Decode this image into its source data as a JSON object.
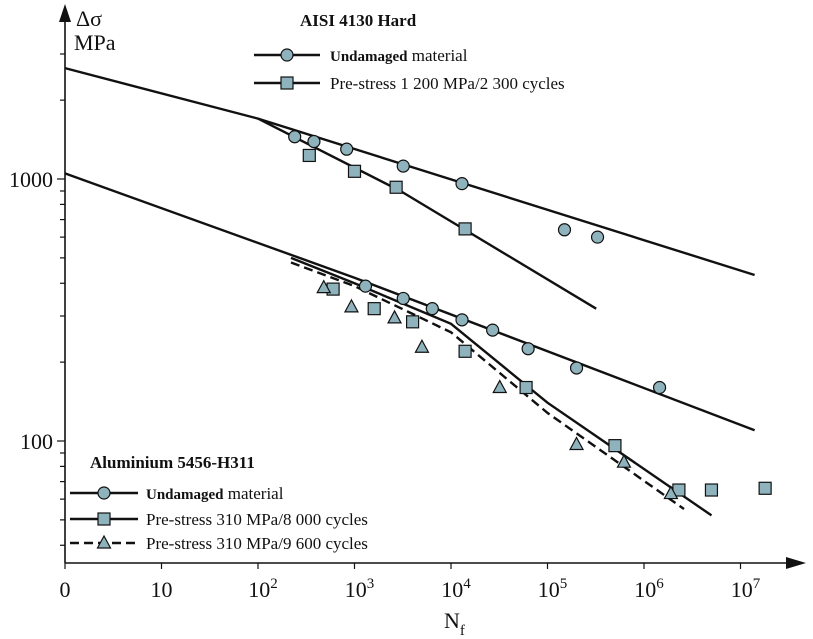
{
  "chart_data": {
    "type": "scatter",
    "x_scale": "log",
    "y_scale": "log",
    "xlabel": "N",
    "xlabel_sub": "f",
    "ylabel_line1": "Δσ",
    "ylabel_line2": "MPa",
    "x_ticks": [
      {
        "value": 1,
        "label": "0"
      },
      {
        "value": 10,
        "label": "10"
      },
      {
        "value": 100,
        "label": "10",
        "sup": "2"
      },
      {
        "value": 1000,
        "label": "10",
        "sup": "3"
      },
      {
        "value": 10000,
        "label": "10",
        "sup": "4"
      },
      {
        "value": 100000,
        "label": "10",
        "sup": "5"
      },
      {
        "value": 1000000,
        "label": "10",
        "sup": "6"
      },
      {
        "value": 10000000,
        "label": "10",
        "sup": "7"
      }
    ],
    "y_ticks": [
      {
        "value": 100,
        "label": "100"
      },
      {
        "value": 1000,
        "label": "1000"
      }
    ],
    "groups": [
      {
        "title": "AISI 4130 Hard",
        "legend": [
          {
            "key": "a_und",
            "bold": "Undamaged",
            "text": " material",
            "marker": "circle",
            "dash": false
          },
          {
            "key": "a_pre",
            "bold": "",
            "text": "Pre-stress 1 200 MPa/2 300 cycles",
            "marker": "square",
            "dash": false
          }
        ]
      },
      {
        "title": "Aluminium 5456-H311",
        "legend": [
          {
            "key": "b_und",
            "bold": "Undamaged",
            "text": " material",
            "marker": "circle",
            "dash": false
          },
          {
            "key": "b_pre1",
            "bold": "",
            "text": "Pre-stress 310 MPa/8 000 cycles",
            "marker": "square",
            "dash": false
          },
          {
            "key": "b_pre2",
            "bold": "",
            "text": "Pre-stress 310 MPa/9 600 cycles",
            "marker": "triangle",
            "dash": true
          }
        ]
      }
    ],
    "series": [
      {
        "key": "a_und",
        "marker": "circle",
        "points": [
          [
            240,
            1450
          ],
          [
            380,
            1390
          ],
          [
            830,
            1300
          ],
          [
            3200,
            1120
          ],
          [
            13000,
            960
          ],
          [
            150000,
            640
          ],
          [
            330000,
            600
          ]
        ],
        "line": [
          [
            1,
            2650
          ],
          [
            100,
            1700
          ],
          [
            14000000,
            430
          ]
        ],
        "dash": false
      },
      {
        "key": "a_pre",
        "marker": "square",
        "points": [
          [
            340,
            1230
          ],
          [
            1000,
            1070
          ],
          [
            2700,
            930
          ],
          [
            14000,
            645
          ]
        ],
        "line": [
          [
            100,
            1700
          ],
          [
            3000,
            900
          ],
          [
            320000,
            320
          ]
        ],
        "dash": false
      },
      {
        "key": "b_und",
        "marker": "circle",
        "points": [
          [
            1300,
            390
          ],
          [
            3200,
            350
          ],
          [
            6400,
            320
          ],
          [
            13000,
            290
          ],
          [
            27000,
            265
          ],
          [
            63000,
            225
          ],
          [
            200000,
            190
          ],
          [
            1450000,
            160
          ]
        ],
        "line": [
          [
            1,
            1050
          ],
          [
            1000,
            420
          ],
          [
            14000000,
            110
          ]
        ],
        "dash": false
      },
      {
        "key": "b_pre1",
        "marker": "square",
        "points": [
          [
            600,
            380
          ],
          [
            1600,
            320
          ],
          [
            4000,
            285
          ],
          [
            14000,
            220
          ],
          [
            60000,
            160
          ],
          [
            500000,
            96
          ],
          [
            2300000,
            65
          ],
          [
            5000000,
            65
          ],
          [
            18000000,
            66
          ]
        ],
        "line": [
          [
            220,
            500
          ],
          [
            1000,
            400
          ],
          [
            10000,
            280
          ],
          [
            100000,
            140
          ],
          [
            5000000,
            52
          ]
        ],
        "dash": false
      },
      {
        "key": "b_pre2",
        "marker": "triangle",
        "points": [
          [
            480,
            385
          ],
          [
            930,
            325
          ],
          [
            2600,
            295
          ],
          [
            5000,
            228
          ],
          [
            32000,
            160
          ],
          [
            200000,
            97
          ],
          [
            620000,
            83
          ],
          [
            1900000,
            63
          ]
        ],
        "line": [
          [
            220,
            480
          ],
          [
            1000,
            390
          ],
          [
            10000,
            260
          ],
          [
            100000,
            128
          ],
          [
            2600000,
            55
          ]
        ],
        "dash": true
      }
    ]
  }
}
